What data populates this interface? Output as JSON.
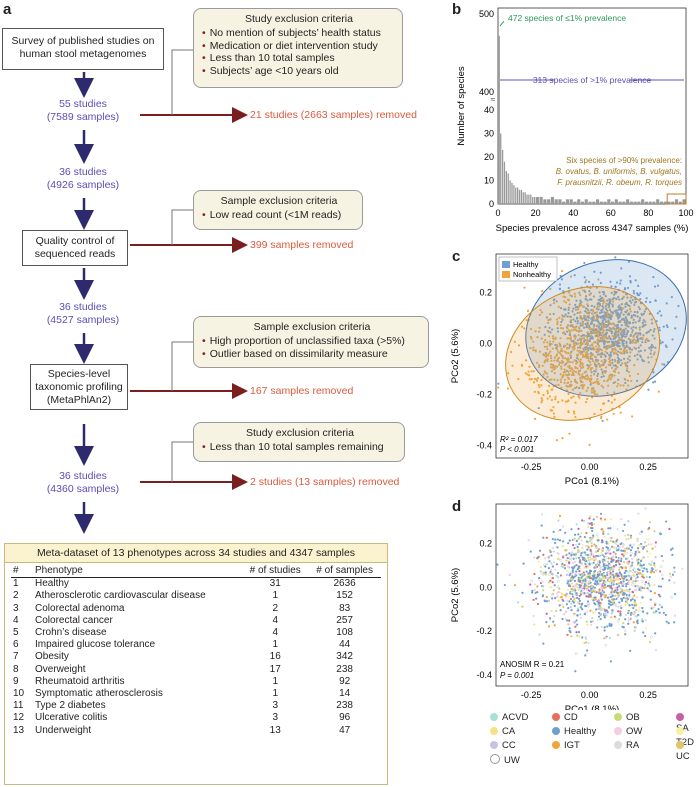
{
  "panels": {
    "a": "a",
    "b": "b",
    "c": "c",
    "d": "d"
  },
  "flow": {
    "survey": "Survey of published studies on human stool metagenomes",
    "s1": {
      "studies": "55 studies",
      "samples": "(7589 samples)"
    },
    "s2": {
      "studies": "36 studies",
      "samples": "(4926 samples)"
    },
    "s3": {
      "studies": "36 studies",
      "samples": "(4527 samples)"
    },
    "s4": {
      "studies": "36 studies",
      "samples": "(4360 samples)"
    },
    "qc": "Quality control of sequenced reads",
    "profiling": "Species-level taxonomic profiling (MetaPhlAn2)",
    "removed": [
      "21 studies (2663 samples) removed",
      "399 samples removed",
      "167 samples removed",
      "2 studies (13 samples) removed"
    ],
    "criteria": [
      {
        "title": "Study exclusion criteria",
        "items": [
          "No mention of subjects’ health status",
          "Medication or diet intervention study",
          "Less than 10 total samples",
          "Subjects’ age <10 years old"
        ]
      },
      {
        "title": "Sample exclusion criteria",
        "items": [
          "Low read count (<1M reads)"
        ]
      },
      {
        "title": "Sample exclusion criteria",
        "items": [
          "High proportion of unclassified taxa (>5%)",
          "Outlier based on dissimilarity measure"
        ]
      },
      {
        "title": "Study exclusion criteria",
        "items": [
          "Less than 10 total samples remaining"
        ]
      }
    ]
  },
  "meta": {
    "title": "Meta-dataset of 13 phenotypes across 34 studies and 4347 samples",
    "headers": [
      "#",
      "Phenotype",
      "# of studies",
      "# of samples"
    ],
    "rows": [
      [
        "1",
        "Healthy",
        "31",
        "2636"
      ],
      [
        "2",
        "Atherosclerotic cardiovascular disease",
        "1",
        "152"
      ],
      [
        "3",
        "Colorectal adenoma",
        "2",
        "83"
      ],
      [
        "4",
        "Colorectal cancer",
        "4",
        "257"
      ],
      [
        "5",
        "Crohn’s disease",
        "4",
        "108"
      ],
      [
        "6",
        "Impaired glucose tolerance",
        "1",
        "44"
      ],
      [
        "7",
        "Obesity",
        "16",
        "342"
      ],
      [
        "8",
        "Overweight",
        "17",
        "238"
      ],
      [
        "9",
        "Rheumatoid arthritis",
        "1",
        "92"
      ],
      [
        "10",
        "Symptomatic atherosclerosis",
        "1",
        "14"
      ],
      [
        "11",
        "Type 2 diabetes",
        "3",
        "238"
      ],
      [
        "12",
        "Ulcerative colitis",
        "3",
        "96"
      ],
      [
        "13",
        "Underweight",
        "13",
        "47"
      ]
    ]
  },
  "chart_data": [
    {
      "type": "bar",
      "panel": "b",
      "xlabel": "Species prevalence across 4347 samples (%)",
      "ylabel": "Number of species",
      "xlim": [
        0,
        100
      ],
      "yticks": [
        0,
        10,
        20,
        30,
        40,
        400,
        500
      ],
      "xticks": [
        0,
        20,
        40,
        60,
        80,
        100
      ],
      "annotations": [
        "472 species of ≤1% prevalence",
        "313 species of >1% prevalence",
        "Six species of >90% prevalence:",
        "B. ovatus, B. uniformis, B. vulgatus,",
        "F. prausnitzii, R. obeum, R. torques"
      ],
      "bins_start": [
        1,
        2,
        3,
        4,
        5,
        6,
        7,
        8,
        9,
        10,
        11,
        12,
        13,
        14,
        15,
        16,
        17,
        18,
        19,
        20,
        22,
        24,
        26,
        28,
        30,
        32,
        34,
        36,
        38,
        40,
        42,
        44,
        46,
        48,
        50,
        52,
        54,
        56,
        58,
        60,
        62,
        64,
        66,
        68,
        70,
        72,
        74,
        76,
        78,
        80,
        82,
        84,
        86,
        88,
        90,
        92,
        94,
        96,
        98
      ],
      "values": [
        30,
        23,
        18,
        14,
        13,
        10,
        9,
        8,
        7,
        7,
        6,
        6,
        5,
        5,
        4,
        4,
        4,
        3,
        3,
        3,
        3,
        2,
        2,
        3,
        2,
        2,
        1,
        2,
        2,
        1,
        2,
        1,
        2,
        1,
        1,
        2,
        1,
        1,
        2,
        1,
        2,
        1,
        1,
        2,
        1,
        1,
        1,
        2,
        1,
        1,
        1,
        2,
        1,
        1,
        1,
        1,
        2,
        1,
        2
      ]
    },
    {
      "type": "scatter",
      "panel": "c",
      "xlabel": "PCo1 (8.1%)",
      "ylabel": "PCo2 (5.6%)",
      "xlim": [
        -0.4,
        0.42
      ],
      "ylim": [
        -0.45,
        0.35
      ],
      "xticks": [
        -0.25,
        0,
        0.25
      ],
      "yticks": [
        -0.4,
        -0.2,
        0,
        0.2
      ],
      "series": [
        {
          "name": "Healthy",
          "color": "#6f9ed0"
        },
        {
          "name": "Nonhealthy",
          "color": "#f1a43a"
        }
      ],
      "stats": [
        "R² = 0.017",
        "P < 0.001"
      ]
    },
    {
      "type": "scatter",
      "panel": "d",
      "xlabel": "PCo1 (8.1%)",
      "ylabel": "PCo2 (5.6%)",
      "xlim": [
        -0.4,
        0.42
      ],
      "ylim": [
        -0.45,
        0.35
      ],
      "xticks": [
        -0.25,
        0,
        0.25
      ],
      "yticks": [
        -0.4,
        -0.2,
        0,
        0.2
      ],
      "stats": [
        "ANOSIM R = 0.21",
        "P = 0.001"
      ],
      "legend": [
        {
          "name": "ACVD",
          "color": "#a8dfd6"
        },
        {
          "name": "CD",
          "color": "#e7705b"
        },
        {
          "name": "OB",
          "color": "#c4dd74"
        },
        {
          "name": "SA",
          "color": "#c85fa7"
        },
        {
          "name": "CA",
          "color": "#f3e48a"
        },
        {
          "name": "Healthy",
          "color": "#6f9ed0"
        },
        {
          "name": "OW",
          "color": "#f4cedf"
        },
        {
          "name": "T2D",
          "color": "#f6f2a5"
        },
        {
          "name": "CC",
          "color": "#c9c2e3"
        },
        {
          "name": "IGT",
          "color": "#f1a43a"
        },
        {
          "name": "RA",
          "color": "#dcdcdc"
        },
        {
          "name": "UC",
          "color": "#e2c56a"
        },
        {
          "name": "UW",
          "color": "#ffffff"
        }
      ]
    }
  ]
}
